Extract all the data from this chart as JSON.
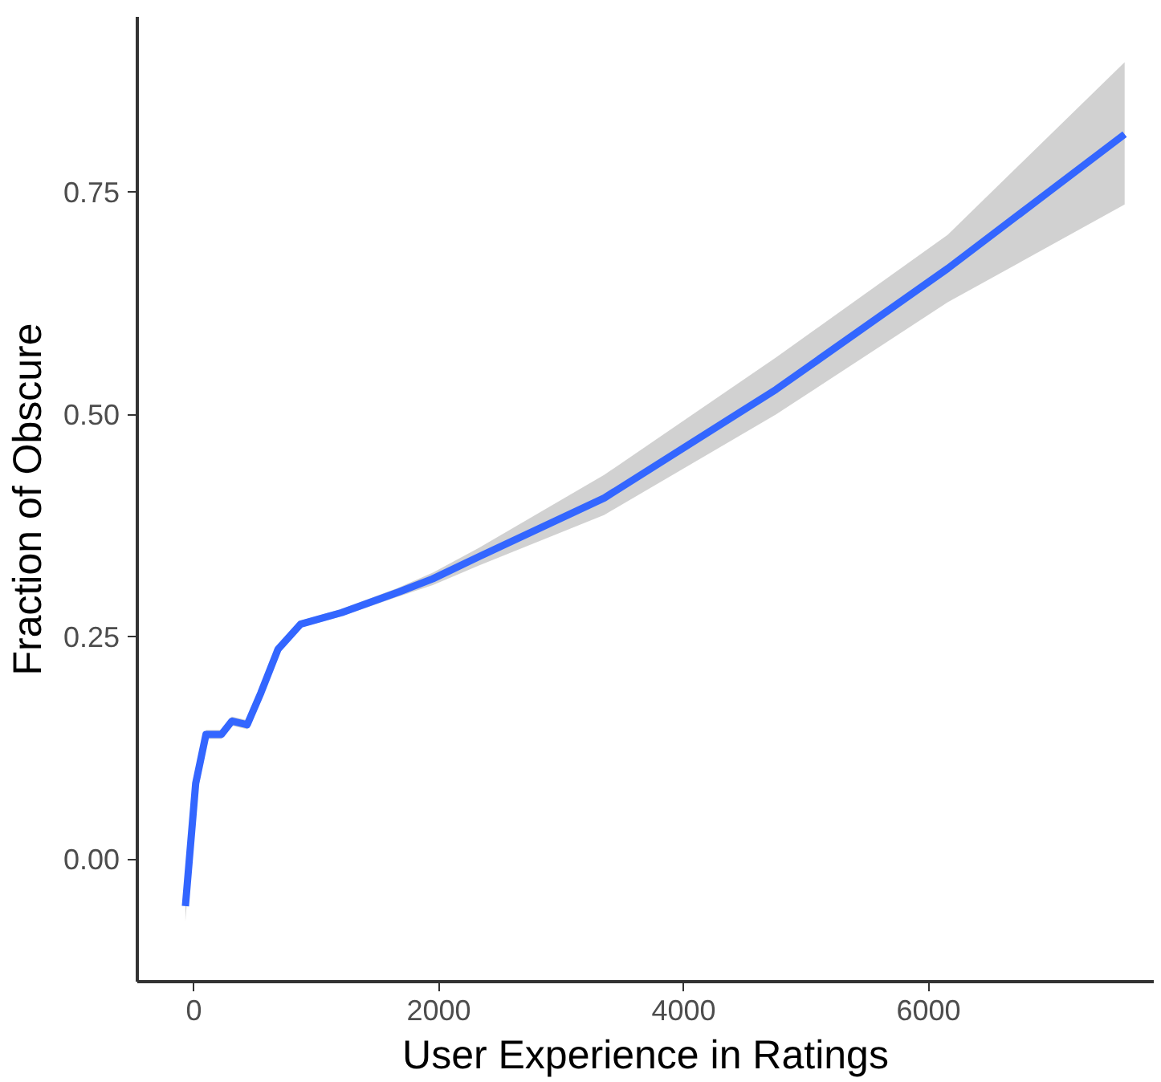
{
  "chart_data": {
    "type": "line",
    "xlabel": "User Experience in Ratings",
    "ylabel": "Fraction of Obscure",
    "xlim": [
      -463,
      7840
    ],
    "ylim": [
      -0.138,
      0.947
    ],
    "xticks": [
      0,
      2000,
      4000,
      6000
    ],
    "yticks": [
      {
        "value": 0,
        "label": "0.00"
      },
      {
        "value": 0.25,
        "label": "0.25"
      },
      {
        "value": 0.5,
        "label": "0.50"
      },
      {
        "value": 0.75,
        "label": "0.75"
      }
    ],
    "grid": false,
    "series": [
      {
        "color": "#3366ff",
        "x": [
          -70,
          14,
          98,
          224,
          309,
          435,
          547,
          687,
          870,
          1206,
          1669,
          1950,
          2328,
          3352,
          4755,
          6157,
          7602
        ],
        "values": [
          -0.053,
          0.085,
          0.14,
          0.14,
          0.155,
          0.151,
          0.187,
          0.236,
          0.264,
          0.277,
          0.3,
          0.315,
          0.34,
          0.406,
          0.528,
          0.664,
          0.815
        ],
        "lower": [
          -0.07,
          0.08,
          0.135,
          0.135,
          0.15,
          0.146,
          0.182,
          0.231,
          0.26,
          0.273,
          0.295,
          0.308,
          0.33,
          0.387,
          0.5,
          0.626,
          0.736
        ],
        "upper": [
          -0.03,
          0.09,
          0.145,
          0.145,
          0.16,
          0.156,
          0.192,
          0.241,
          0.268,
          0.281,
          0.305,
          0.322,
          0.35,
          0.432,
          0.564,
          0.702,
          0.896
        ]
      }
    ]
  }
}
